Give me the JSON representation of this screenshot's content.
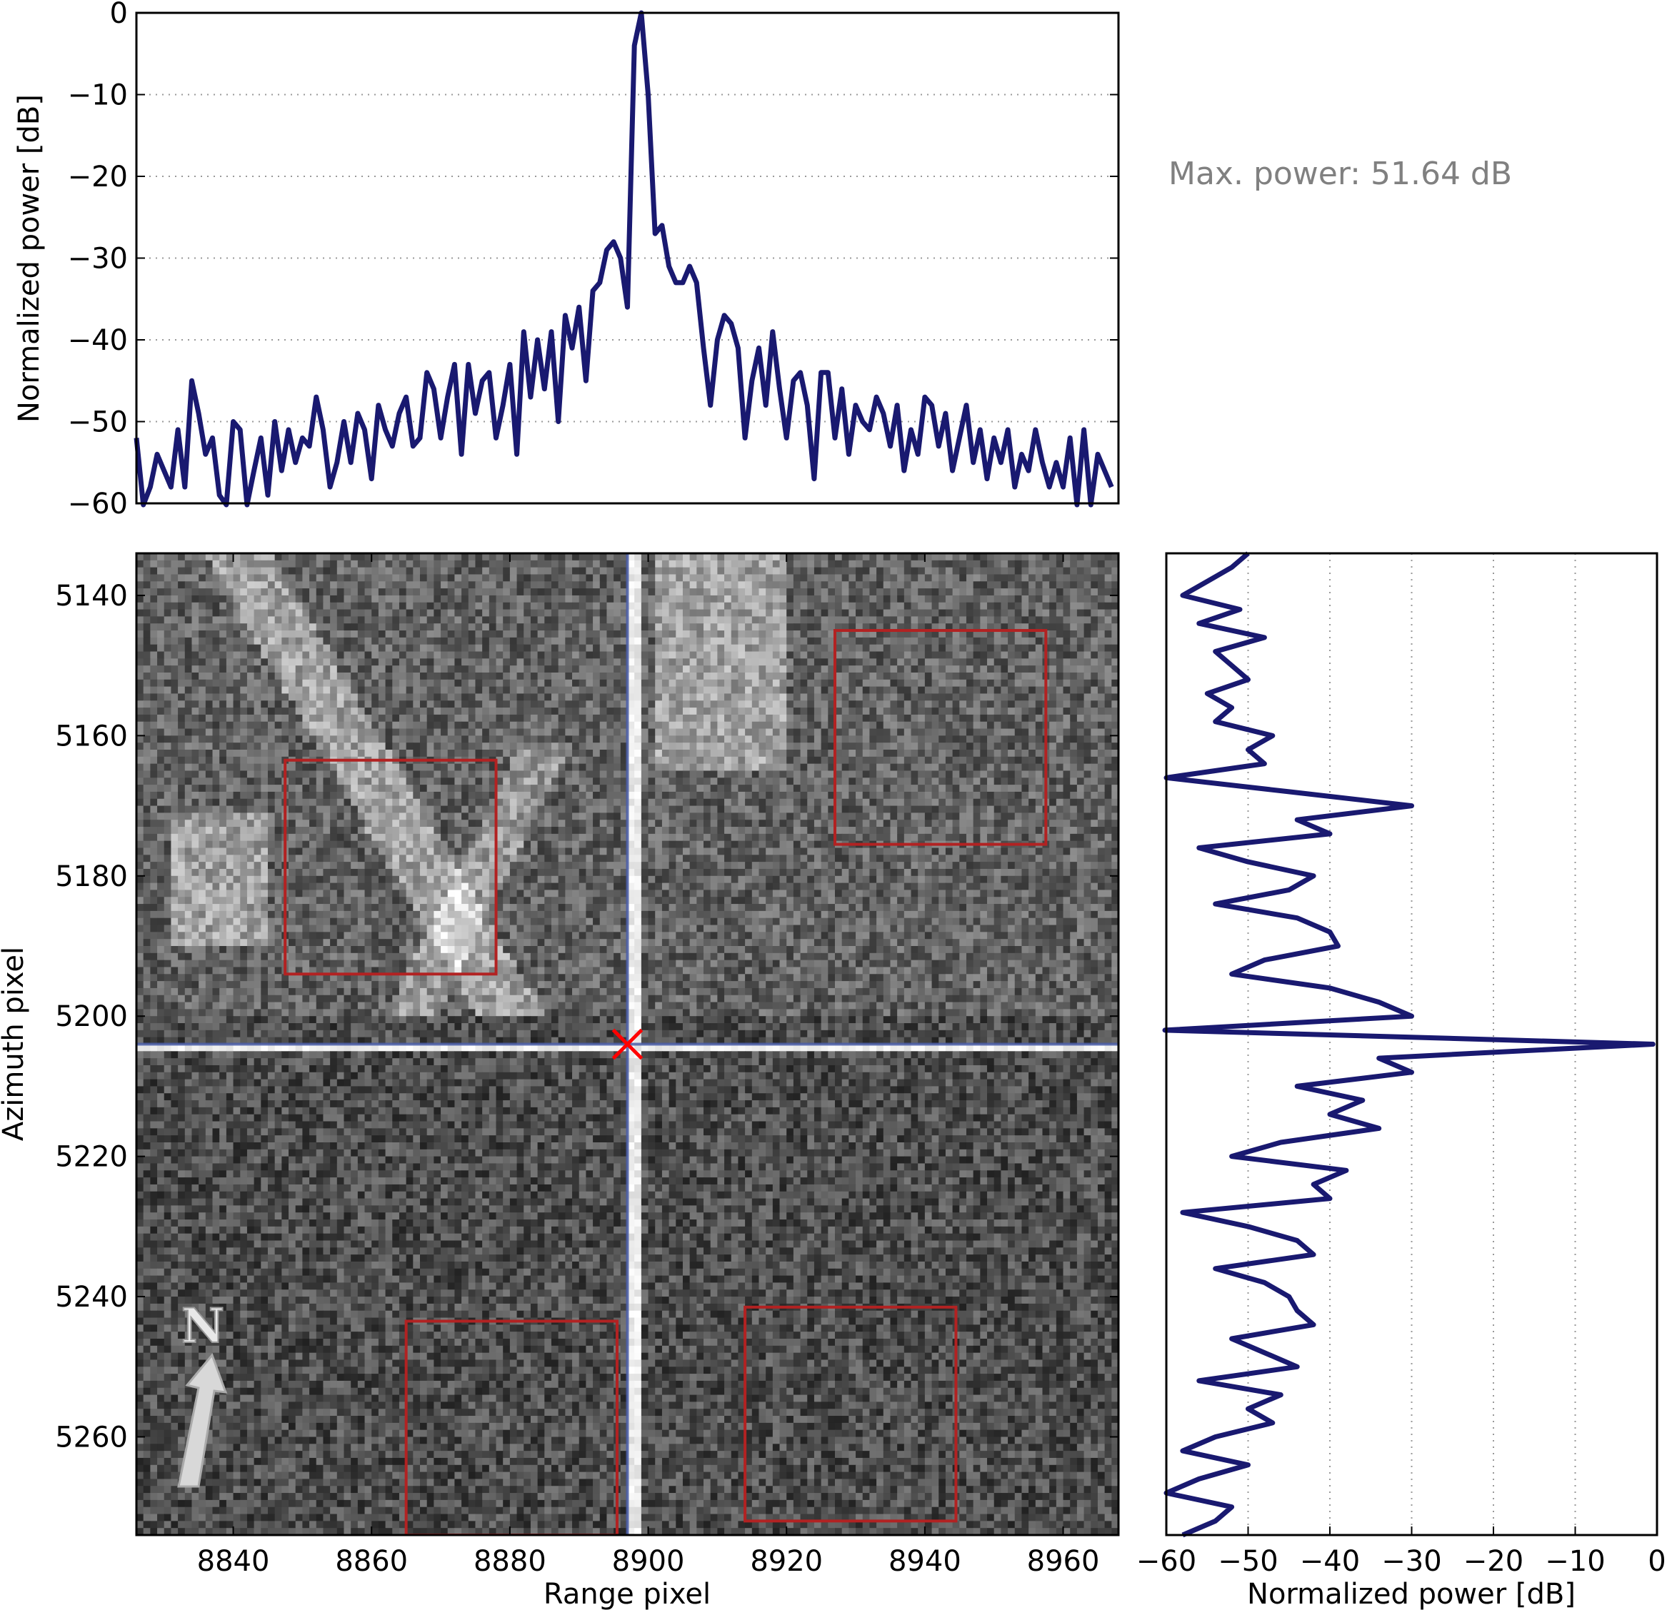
{
  "chart_data": [
    {
      "type": "line",
      "panel": "range-profile",
      "xlabel": "",
      "ylabel": "Normalized power [dB]",
      "xlim": [
        8826,
        8968
      ],
      "ylim": [
        -60,
        0
      ],
      "yticks": [
        "0",
        "−10",
        "−20",
        "−30",
        "−40",
        "−50",
        "−60"
      ],
      "ytick_values": [
        0,
        -10,
        -20,
        -30,
        -40,
        -50,
        -60
      ],
      "grid": "horizontal dotted",
      "color": "#191970",
      "x": [
        8826,
        8827,
        8828,
        8829,
        8830,
        8831,
        8832,
        8833,
        8834,
        8835,
        8836,
        8837,
        8838,
        8839,
        8840,
        8841,
        8842,
        8843,
        8844,
        8845,
        8846,
        8847,
        8848,
        8849,
        8850,
        8851,
        8852,
        8853,
        8854,
        8855,
        8856,
        8857,
        8858,
        8859,
        8860,
        8861,
        8862,
        8863,
        8864,
        8865,
        8866,
        8867,
        8868,
        8869,
        8870,
        8871,
        8872,
        8873,
        8874,
        8875,
        8876,
        8877,
        8878,
        8879,
        8880,
        8881,
        8882,
        8883,
        8884,
        8885,
        8886,
        8887,
        8888,
        8889,
        8890,
        8891,
        8892,
        8893,
        8894,
        8895,
        8896,
        8897,
        8898,
        8899,
        8900,
        8901,
        8902,
        8903,
        8904,
        8905,
        8906,
        8907,
        8908,
        8909,
        8910,
        8911,
        8912,
        8913,
        8914,
        8915,
        8916,
        8917,
        8918,
        8919,
        8920,
        8921,
        8922,
        8923,
        8924,
        8925,
        8926,
        8927,
        8928,
        8929,
        8930,
        8931,
        8932,
        8933,
        8934,
        8935,
        8936,
        8937,
        8938,
        8939,
        8940,
        8941,
        8942,
        8943,
        8944,
        8945,
        8946,
        8947,
        8948,
        8949,
        8950,
        8951,
        8952,
        8953,
        8954,
        8955,
        8956,
        8957,
        8958,
        8959,
        8960,
        8961,
        8962,
        8963,
        8964,
        8965,
        8966,
        8967
      ],
      "y": [
        -52,
        -62,
        -58,
        -54,
        -56,
        -58,
        -51,
        -58,
        -45,
        -49,
        -54,
        -52,
        -59,
        -62,
        -50,
        -51,
        -62,
        -56,
        -52,
        -59,
        -50,
        -56,
        -51,
        -55,
        -52,
        -53,
        -47,
        -51,
        -58,
        -55,
        -50,
        -55,
        -49,
        -51,
        -57,
        -48,
        -51,
        -53,
        -49,
        -47,
        -53,
        -52,
        -44,
        -46,
        -52,
        -47,
        -43,
        -54,
        -43,
        -49,
        -45,
        -44,
        -52,
        -48,
        -43,
        -54,
        -39,
        -47,
        -40,
        -46,
        -39,
        -50,
        -37,
        -41,
        -36,
        -45,
        -34,
        -33,
        -29,
        -28,
        -30,
        -36,
        -4,
        0,
        -10,
        -27,
        -26,
        -31,
        -33,
        -33,
        -31,
        -33,
        -41,
        -48,
        -40,
        -37,
        -38,
        -41,
        -52,
        -45,
        -41,
        -48,
        -39,
        -46,
        -52,
        -45,
        -44,
        -48,
        -57,
        -44,
        -44,
        -52,
        -46,
        -54,
        -48,
        -50,
        -51,
        -47,
        -49,
        -53,
        -48,
        -56,
        -51,
        -54,
        -47,
        -48,
        -53,
        -49,
        -56,
        -52,
        -48,
        -55,
        -51,
        -57,
        -52,
        -55,
        -51,
        -58,
        -54,
        -56,
        -51,
        -55,
        -58,
        -55,
        -58,
        -52,
        -62,
        -51,
        -62,
        -54,
        -56,
        -58
      ]
    },
    {
      "type": "heatmap",
      "panel": "sar-image",
      "xlabel": "Range pixel",
      "ylabel": "Azimuth pixel",
      "xlim": [
        8826,
        8968
      ],
      "ylim": [
        5274,
        5134
      ],
      "xticks": [
        "8840",
        "8860",
        "8880",
        "8900",
        "8920",
        "8940",
        "8960"
      ],
      "xtick_values": [
        8840,
        8860,
        8880,
        8900,
        8920,
        8940,
        8960
      ],
      "yticks": [
        "5140",
        "5160",
        "5180",
        "5200",
        "5220",
        "5240",
        "5260"
      ],
      "ytick_values": [
        5140,
        5160,
        5180,
        5200,
        5220,
        5240,
        5260
      ],
      "colormap": "gray",
      "peak": {
        "range": 8897,
        "azimuth": 5204,
        "marker": "x",
        "color": "#ff0000"
      },
      "crosshair_color": "#4b5ea8",
      "clutter_boxes": [
        {
          "range": [
            8847.5,
            8878
          ],
          "azimuth": [
            5163.5,
            5194
          ]
        },
        {
          "range": [
            8927,
            8957.5
          ],
          "azimuth": [
            5145,
            5175.5
          ]
        },
        {
          "range": [
            8865,
            8895.5
          ],
          "azimuth": [
            5243.5,
            5274
          ]
        },
        {
          "range": [
            8914,
            8944.5
          ],
          "azimuth": [
            5241.5,
            5272
          ]
        }
      ],
      "box_color": "#b22222",
      "north_arrow": {
        "label": "N"
      }
    },
    {
      "type": "line",
      "panel": "azimuth-profile",
      "xlabel": "Normalized power [dB]",
      "ylabel": "",
      "xlim": [
        -60,
        0
      ],
      "ylim": [
        5274,
        5134
      ],
      "xticks": [
        "−60",
        "−50",
        "−40",
        "−30",
        "−20",
        "−10",
        "0"
      ],
      "xtick_values": [
        -60,
        -50,
        -40,
        -30,
        -20,
        -10,
        0
      ],
      "grid": "vertical dotted",
      "color": "#191970",
      "azimuth": [
        5134,
        5136,
        5138,
        5140,
        5142,
        5144,
        5146,
        5148,
        5150,
        5152,
        5154,
        5156,
        5158,
        5160,
        5162,
        5164,
        5166,
        5168,
        5170,
        5172,
        5174,
        5176,
        5178,
        5180,
        5182,
        5184,
        5186,
        5188,
        5190,
        5192,
        5194,
        5196,
        5198,
        5200,
        5202,
        5204,
        5206,
        5208,
        5210,
        5212,
        5214,
        5216,
        5218,
        5220,
        5222,
        5224,
        5226,
        5228,
        5230,
        5232,
        5234,
        5236,
        5238,
        5240,
        5242,
        5244,
        5246,
        5248,
        5250,
        5252,
        5254,
        5256,
        5258,
        5260,
        5262,
        5264,
        5266,
        5268,
        5270,
        5272,
        5274
      ],
      "power": [
        -50,
        -52,
        -55,
        -58,
        -51,
        -56,
        -48,
        -54,
        -52,
        -50,
        -55,
        -52,
        -54,
        -47,
        -50,
        -48,
        -60,
        -45,
        -30,
        -44,
        -40,
        -56,
        -50,
        -42,
        -45,
        -54,
        -44,
        -40,
        -39,
        -48,
        -52,
        -40,
        -34,
        -30,
        -62,
        -0.5,
        -34,
        -30,
        -44,
        -36,
        -40,
        -34,
        -46,
        -52,
        -38,
        -42,
        -40,
        -58,
        -50,
        -44,
        -42,
        -54,
        -48,
        -45,
        -44,
        -42,
        -52,
        -48,
        -44,
        -56,
        -46,
        -50,
        -47,
        -54,
        -58,
        -50,
        -56,
        -60,
        -52,
        -54,
        -58
      ]
    }
  ],
  "annotation": {
    "max_power": "Max. power: 51.64 dB"
  }
}
